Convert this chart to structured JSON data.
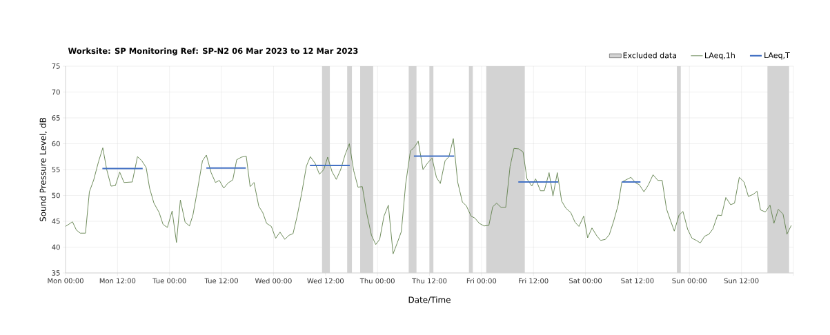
{
  "chart_data": {
    "type": "line",
    "title": "Worksite: SP    Monitoring Ref: SP-N2      06 Mar 2023 to 12 Mar 2023",
    "xlabel": "Date/Time",
    "ylabel": "Sound Pressure Level, dB",
    "xlim": [
      "2023-03-06T00:00",
      "2023-03-13T00:00"
    ],
    "ylim": [
      35,
      75
    ],
    "xticks": [
      {
        "value": "2023-03-06T00:00",
        "label": "Mon 00:00"
      },
      {
        "value": "2023-03-06T12:00",
        "label": "Mon 12:00"
      },
      {
        "value": "2023-03-07T00:00",
        "label": "Tue 00:00"
      },
      {
        "value": "2023-03-07T12:00",
        "label": "Tue 12:00"
      },
      {
        "value": "2023-03-08T00:00",
        "label": "Wed 00:00"
      },
      {
        "value": "2023-03-08T12:00",
        "label": "Wed 12:00"
      },
      {
        "value": "2023-03-09T00:00",
        "label": "Thu 00:00"
      },
      {
        "value": "2023-03-09T12:00",
        "label": "Thu 12:00"
      },
      {
        "value": "2023-03-10T00:00",
        "label": "Fri 00:00"
      },
      {
        "value": "2023-03-10T12:00",
        "label": "Fri 12:00"
      },
      {
        "value": "2023-03-11T00:00",
        "label": "Sat 00:00"
      },
      {
        "value": "2023-03-11T12:00",
        "label": "Sat 12:00"
      },
      {
        "value": "2023-03-12T00:00",
        "label": "Sun 00:00"
      },
      {
        "value": "2023-03-12T12:00",
        "label": "Sun 12:00"
      },
      {
        "value": "2023-03-13T00:00",
        "label": null
      }
    ],
    "yticks": [
      35,
      40,
      45,
      50,
      55,
      60,
      65,
      70,
      75
    ],
    "grid": true,
    "legend": "top right",
    "marker": "none",
    "line_style": "solid",
    "bands": [
      {
        "axis": "x",
        "from": "2023-03-08T11:12",
        "to": "2023-03-08T13:00",
        "label": "Excluded data",
        "color": "#d3d3d3"
      },
      {
        "axis": "x",
        "from": "2023-03-08T17:00",
        "to": "2023-03-08T18:06",
        "color": "#d3d3d3"
      },
      {
        "axis": "x",
        "from": "2023-03-08T20:00",
        "to": "2023-03-08T23:00",
        "color": "#d3d3d3"
      },
      {
        "axis": "x",
        "from": "2023-03-09T07:12",
        "to": "2023-03-09T09:00",
        "color": "#d3d3d3"
      },
      {
        "axis": "x",
        "from": "2023-03-09T12:00",
        "to": "2023-03-09T12:54",
        "color": "#d3d3d3"
      },
      {
        "axis": "x",
        "from": "2023-03-09T21:06",
        "to": "2023-03-09T22:00",
        "color": "#d3d3d3"
      },
      {
        "axis": "x",
        "from": "2023-03-10T01:06",
        "to": "2023-03-10T10:00",
        "color": "#d3d3d3"
      },
      {
        "axis": "x",
        "from": "2023-03-11T21:06",
        "to": "2023-03-11T22:00",
        "color": "#d3d3d3"
      },
      {
        "axis": "x",
        "from": "2023-03-12T18:00",
        "to": "2023-03-12T23:00",
        "color": "#d3d3d3"
      }
    ],
    "series": [
      {
        "name": "LAeq,1h",
        "color": "#5f7f4a",
        "x": [
          "2023-03-06T00:00",
          "2023-03-06T01:36",
          "2023-03-06T02:30",
          "2023-03-06T03:24",
          "2023-03-06T04:36",
          "2023-03-06T05:30",
          "2023-03-06T06:30",
          "2023-03-06T07:36",
          "2023-03-06T08:36",
          "2023-03-06T09:30",
          "2023-03-06T10:30",
          "2023-03-06T11:30",
          "2023-03-06T12:30",
          "2023-03-06T13:30",
          "2023-03-06T15:24",
          "2023-03-06T16:36",
          "2023-03-06T17:36",
          "2023-03-06T18:36",
          "2023-03-06T19:24",
          "2023-03-06T20:24",
          "2023-03-06T21:36",
          "2023-03-06T22:30",
          "2023-03-06T23:30",
          "2023-03-07T00:36",
          "2023-03-07T01:36",
          "2023-03-07T02:30",
          "2023-03-07T03:36",
          "2023-03-07T04:36",
          "2023-03-07T05:24",
          "2023-03-07T06:30",
          "2023-03-07T07:36",
          "2023-03-07T08:30",
          "2023-03-07T09:36",
          "2023-03-07T10:36",
          "2023-03-07T11:30",
          "2023-03-07T12:30",
          "2023-03-07T13:30",
          "2023-03-07T14:36",
          "2023-03-07T15:30",
          "2023-03-07T16:36",
          "2023-03-07T17:42",
          "2023-03-07T18:36",
          "2023-03-07T19:30",
          "2023-03-07T20:36",
          "2023-03-07T21:30",
          "2023-03-07T22:24",
          "2023-03-07T23:30",
          "2023-03-08T00:30",
          "2023-03-08T01:30",
          "2023-03-08T02:36",
          "2023-03-08T03:36",
          "2023-03-08T04:30",
          "2023-03-08T05:24",
          "2023-03-08T06:30",
          "2023-03-08T07:36",
          "2023-03-08T08:30",
          "2023-03-08T09:36",
          "2023-03-08T10:36",
          "2023-03-08T11:36",
          "2023-03-08T12:30",
          "2023-03-08T13:30",
          "2023-03-08T14:30",
          "2023-03-08T15:30",
          "2023-03-08T16:30",
          "2023-03-08T17:30",
          "2023-03-08T18:30",
          "2023-03-08T19:30",
          "2023-03-08T20:30",
          "2023-03-08T21:30",
          "2023-03-08T22:36",
          "2023-03-08T23:36",
          "2023-03-09T00:30",
          "2023-03-09T01:30",
          "2023-03-09T02:30",
          "2023-03-09T03:36",
          "2023-03-09T04:36",
          "2023-03-09T05:30",
          "2023-03-09T06:30",
          "2023-03-09T07:36",
          "2023-03-09T08:30",
          "2023-03-09T09:24",
          "2023-03-09T10:30",
          "2023-03-09T11:36",
          "2023-03-09T12:36",
          "2023-03-09T13:36",
          "2023-03-09T14:30",
          "2023-03-09T15:36",
          "2023-03-09T16:30",
          "2023-03-09T17:30",
          "2023-03-09T18:30",
          "2023-03-09T19:36",
          "2023-03-09T20:30",
          "2023-03-09T21:36",
          "2023-03-09T22:30",
          "2023-03-09T23:30",
          "2023-03-10T00:36",
          "2023-03-10T01:42",
          "2023-03-10T02:36",
          "2023-03-10T03:30",
          "2023-03-10T04:30",
          "2023-03-10T05:36",
          "2023-03-10T06:36",
          "2023-03-10T07:30",
          "2023-03-10T08:36",
          "2023-03-10T09:36",
          "2023-03-10T10:30",
          "2023-03-10T11:36",
          "2023-03-10T12:30",
          "2023-03-10T13:36",
          "2023-03-10T14:30",
          "2023-03-10T15:36",
          "2023-03-10T16:30",
          "2023-03-10T17:30",
          "2023-03-10T18:30",
          "2023-03-10T19:30",
          "2023-03-10T20:36",
          "2023-03-10T21:36",
          "2023-03-10T22:30",
          "2023-03-10T23:36",
          "2023-03-11T00:30",
          "2023-03-11T01:30",
          "2023-03-11T02:36",
          "2023-03-11T03:30",
          "2023-03-11T04:36",
          "2023-03-11T05:30",
          "2023-03-11T06:30",
          "2023-03-11T07:30",
          "2023-03-11T08:24",
          "2023-03-11T10:30",
          "2023-03-11T11:36",
          "2023-03-11T12:24",
          "2023-03-11T13:30",
          "2023-03-11T14:30",
          "2023-03-11T15:36",
          "2023-03-11T16:42",
          "2023-03-11T17:42",
          "2023-03-11T18:42",
          "2023-03-11T19:36",
          "2023-03-11T20:30",
          "2023-03-11T21:36",
          "2023-03-11T22:30",
          "2023-03-11T23:36",
          "2023-03-12T00:36",
          "2023-03-12T01:36",
          "2023-03-12T02:30",
          "2023-03-12T03:30",
          "2023-03-12T04:30",
          "2023-03-12T05:24",
          "2023-03-12T06:30",
          "2023-03-12T07:24",
          "2023-03-12T08:24",
          "2023-03-12T09:30",
          "2023-03-12T10:24",
          "2023-03-12T11:30",
          "2023-03-12T12:36",
          "2023-03-12T13:36",
          "2023-03-12T14:42",
          "2023-03-12T15:36",
          "2023-03-12T16:24",
          "2023-03-12T17:30",
          "2023-03-12T18:36",
          "2023-03-12T19:30",
          "2023-03-12T20:30",
          "2023-03-12T21:36",
          "2023-03-12T22:30",
          "2023-03-12T23:30"
        ],
        "values": [
          44.0,
          44.9,
          43.3,
          42.7,
          42.7,
          50.7,
          53.0,
          56.5,
          59.2,
          55.0,
          51.8,
          51.9,
          54.5,
          52.5,
          52.6,
          57.5,
          56.7,
          55.4,
          51.4,
          48.5,
          46.7,
          44.4,
          43.8,
          47.0,
          40.9,
          49.1,
          44.8,
          44.1,
          46.2,
          51.3,
          56.7,
          57.8,
          54.4,
          52.5,
          52.9,
          51.4,
          52.4,
          53.0,
          56.9,
          57.4,
          57.6,
          51.7,
          52.5,
          47.9,
          46.7,
          44.6,
          44.0,
          41.7,
          42.9,
          41.5,
          42.3,
          42.6,
          45.8,
          50.4,
          55.7,
          57.5,
          56.2,
          54.1,
          55.0,
          57.4,
          54.6,
          53.1,
          55.0,
          57.8,
          60.0,
          54.8,
          51.6,
          51.7,
          46.6,
          42.3,
          40.5,
          41.5,
          46.0,
          48.1,
          38.7,
          40.9,
          43.0,
          52.2,
          58.6,
          59.3,
          60.5,
          55.0,
          56.3,
          57.2,
          53.5,
          52.3,
          56.7,
          57.5,
          61.0,
          52.6,
          48.7,
          48.0,
          46.0,
          45.6,
          44.6,
          44.1,
          44.2,
          47.8,
          48.5,
          47.7,
          47.7,
          55.6,
          59.1,
          59.0,
          58.4,
          53.2,
          51.8,
          53.2,
          50.9,
          50.9,
          54.4,
          49.9,
          54.4,
          48.9,
          47.5,
          46.7,
          44.8,
          44.0,
          46.0,
          41.8,
          43.7,
          42.2,
          41.3,
          41.5,
          42.4,
          45.0,
          48.0,
          52.6,
          53.5,
          52.4,
          52.1,
          50.7,
          52.0,
          54.0,
          52.9,
          52.9,
          47.4,
          45.2,
          43.1,
          46.2,
          46.9,
          43.4,
          41.7,
          41.3,
          40.8,
          42.1,
          42.5,
          43.5,
          46.2,
          46.1,
          49.6,
          48.2,
          48.5,
          53.5,
          52.6,
          49.8,
          50.2,
          50.8,
          47.2,
          46.8,
          48.1,
          44.6,
          47.3,
          46.4,
          42.5,
          44.2
        ]
      },
      {
        "name": "LAeq,T",
        "color": "#4472c4",
        "x": [
          "2023-03-06T08:30",
          "2023-03-06T17:48",
          "2023-03-07T01:00",
          "2023-03-07T08:30",
          "2023-03-07T17:36",
          "2023-03-08T01:00",
          "2023-03-08T08:24",
          "2023-03-08T17:36",
          "2023-03-09T01:00",
          "2023-03-09T08:24",
          "2023-03-09T17:42",
          "2023-03-10T01:00",
          "2023-03-10T08:30",
          "2023-03-10T17:42",
          "2023-03-11T01:00",
          "2023-03-11T08:24",
          "2023-03-11T12:42"
        ],
        "values": [
          55.2,
          55.2,
          null,
          55.3,
          55.3,
          null,
          55.8,
          55.8,
          null,
          57.6,
          57.6,
          null,
          52.6,
          52.6,
          null,
          52.6,
          52.6
        ]
      }
    ]
  }
}
